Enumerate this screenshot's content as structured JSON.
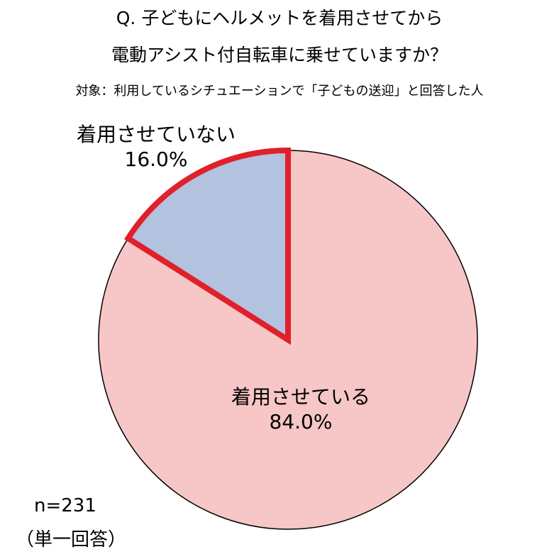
{
  "title_lines": [
    "Q. 子どもにヘルメットを着用させてから",
    "電動アシスト付自転車に乗せていますか？"
  ],
  "subtitle": "対象：利用しているシチュエーションで「子どもの送迎」と回答した人",
  "chart_data": {
    "type": "pie",
    "title": "Q. 子どもにヘルメットを着用させてから 電動アシスト付自転車に乗せていますか？",
    "subtitle": "対象：利用しているシチュエーションで「子どもの送迎」と回答した人",
    "slices": [
      {
        "label": "着用させていない",
        "value": 16.0,
        "value_label": "16.0%",
        "color": "#b3c2df",
        "highlighted": true
      },
      {
        "label": "着用させている",
        "value": 84.0,
        "value_label": "84.0%",
        "color": "#f7c6c6",
        "highlighted": false
      }
    ],
    "highlight_color": "#e0202a",
    "start": "12 o'clock, clockwise from the smaller slice counter-clockwise",
    "legend": "none (labels on slices)"
  },
  "notes": {
    "n": "n=231",
    "answer_type": "（単一回答）"
  }
}
